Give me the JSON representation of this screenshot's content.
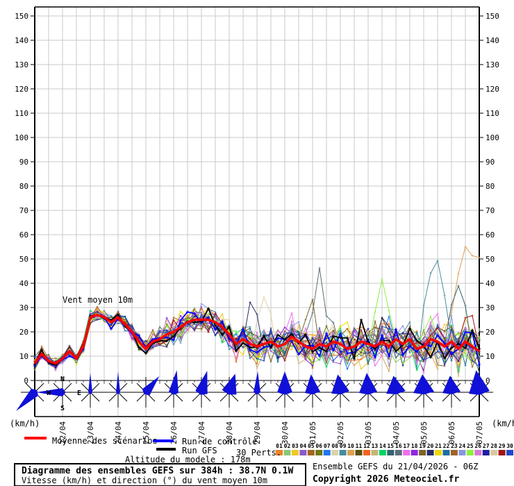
{
  "chart_data": {
    "type": "line",
    "plot_label": "Vent moyen 10m",
    "unit_left": "(km/h)",
    "unit_right": "(km/h)",
    "ylim": [
      0,
      155
    ],
    "y_ticks": [
      0,
      10,
      20,
      30,
      40,
      50,
      60,
      70,
      80,
      90,
      100,
      110,
      120,
      130,
      140,
      150
    ],
    "x_tick_dates": [
      "22/04",
      "23/04",
      "24/04",
      "25/04",
      "26/04",
      "27/04",
      "28/04",
      "29/04",
      "30/04",
      "01/05",
      "02/05",
      "03/05",
      "04/05",
      "05/05",
      "06/05",
      "07/05"
    ],
    "hours_per_step": 6,
    "total_hours": 384,
    "grid": true,
    "grid_color": "#c8c8c8",
    "mean_series": {
      "name": "Moyenne des scénarios",
      "color": "#ff0000",
      "values": [
        7,
        11,
        8,
        7,
        9,
        12,
        9,
        14,
        26,
        27,
        26,
        24,
        26,
        23,
        20,
        16,
        13,
        16,
        17,
        19,
        20,
        22,
        24,
        25,
        25,
        25,
        24,
        22,
        19,
        15,
        17,
        15,
        14,
        15,
        16,
        14,
        15,
        18,
        16,
        14,
        13,
        15,
        14,
        16,
        15,
        13,
        14,
        16,
        15,
        14,
        16,
        14,
        17,
        15,
        17,
        13,
        14,
        17,
        16,
        14,
        16,
        13,
        16,
        14,
        12
      ]
    },
    "spread": [
      3,
      3,
      3,
      3,
      3,
      3,
      3,
      3,
      3.5,
      3.5,
      3.5,
      3.5,
      3.5,
      3.5,
      5,
      5,
      5,
      5,
      5,
      6.5,
      6.5,
      6.5,
      6.5,
      6.5,
      6.5,
      7.5,
      7.5,
      7.5,
      7.5,
      7.5,
      7.5,
      9,
      9,
      9,
      9,
      9,
      9,
      10,
      10,
      10,
      10,
      10,
      10,
      10.5,
      10.5,
      10.5,
      10.5,
      10.5,
      10.5,
      11.5,
      11.5,
      11.5,
      11.5,
      11.5,
      11.5,
      11.5,
      11.5,
      12.5,
      12.5,
      12.5,
      12.5,
      12.5,
      12.5,
      12.5,
      12.5
    ],
    "control": {
      "name": "Run de contrôle",
      "color": "#0000ff",
      "seed": 101
    },
    "gfs": {
      "name": "Run GFS",
      "color": "#000000",
      "seed": 202
    },
    "members": {
      "count": 30,
      "colors": [
        "#F08228",
        "#8CC878",
        "#F0C828",
        "#8C5AC8",
        "#A5641E",
        "#6E7814",
        "#1E78F0",
        "#DCD2AA",
        "#468CA0",
        "#DCA050",
        "#5A500A",
        "#F0641E",
        "#C8B478",
        "#00D264",
        "#32646E",
        "#5A6E78",
        "#EE6FEE",
        "#8C28E0",
        "#7A6428",
        "#28286E",
        "#F0D800",
        "#1E6EA0",
        "#A06428",
        "#8C96E0",
        "#8CF03C",
        "#D878D8",
        "#1E1EA0",
        "#DCC8A0",
        "#A01414",
        "#1E46C8"
      ]
    },
    "outliers": [
      {
        "member": 8,
        "boost": {
          "32": 8,
          "33": 15,
          "34": 6
        }
      },
      {
        "member": 9,
        "boost": {
          "56": 14,
          "57": 20,
          "58": 28,
          "59": 16
        }
      },
      {
        "member": 10,
        "boost": {
          "61": 26,
          "62": 38,
          "63": 36,
          "64": 35
        }
      },
      {
        "member": 15,
        "boost": {
          "60": 12,
          "61": 21,
          "62": 10
        }
      },
      {
        "member": 16,
        "boost": {
          "40": 10,
          "41": 26,
          "42": 8
        }
      },
      {
        "member": 19,
        "boost": {
          "39": 8,
          "40": 14
        }
      },
      {
        "member": 20,
        "boost": {
          "31": 12,
          "32": 6
        }
      },
      {
        "member": 25,
        "boost": {
          "49": 10,
          "50": 20,
          "51": 8
        }
      }
    ],
    "wind_roses": {
      "arrow_color": "#1010d8",
      "items": [
        {
          "dir": 225,
          "len": 38,
          "w": 7
        },
        {
          "dir": 270,
          "len": 38,
          "w": 6
        },
        {
          "dir": 0,
          "len": 28,
          "w": 3
        },
        {
          "dir": 0,
          "len": 30,
          "w": 3
        },
        {
          "dir": 40,
          "len": 30,
          "w": 7
        },
        {
          "dir": 8,
          "len": 32,
          "w": 7
        },
        {
          "dir": 15,
          "len": 32,
          "w": 9
        },
        {
          "dir": 18,
          "len": 28,
          "w": 11
        },
        {
          "dir": 2,
          "len": 30,
          "w": 5
        },
        {
          "dir": 0,
          "len": 30,
          "w": 11
        },
        {
          "dir": -5,
          "len": 26,
          "w": 11
        },
        {
          "dir": -8,
          "len": 26,
          "w": 13
        },
        {
          "dir": -4,
          "len": 28,
          "w": 13
        },
        {
          "dir": -8,
          "len": 24,
          "w": 14
        },
        {
          "dir": -4,
          "len": 26,
          "w": 15
        },
        {
          "dir": -5,
          "len": 24,
          "w": 13
        },
        {
          "dir": -8,
          "len": 32,
          "w": 15
        }
      ]
    },
    "compass": {
      "n": "N",
      "e": "E",
      "s": "S",
      "w": "W"
    }
  },
  "legend": {
    "mean_label": "Moyenne des scénarios",
    "mean_color": "#ff0000",
    "control_label": "Run de contrôle",
    "control_color": "#0000ff",
    "gfs_label": "Run GFS",
    "gfs_color": "#000000",
    "perts_label": "30 Perts."
  },
  "pert_strip": {
    "numbers": [
      "01",
      "02",
      "03",
      "04",
      "05",
      "06",
      "07",
      "08",
      "09",
      "10",
      "11",
      "12",
      "13",
      "14",
      "15",
      "16",
      "17",
      "18",
      "19",
      "20",
      "21",
      "22",
      "23",
      "24",
      "25",
      "26",
      "27",
      "28",
      "29",
      "30"
    ]
  },
  "footer": {
    "altitude": "Altitude du modele : 178m",
    "title": "Diagramme des ensembles GEFS sur 384h : 38.7N 0.1W",
    "subtitle": "Vitesse (km/h) et direction (°) du vent moyen 10m",
    "run_info": "Ensemble GEFS du 21/04/2026 - 06Z",
    "copyright": "Copyright 2026 Meteociel.fr"
  }
}
